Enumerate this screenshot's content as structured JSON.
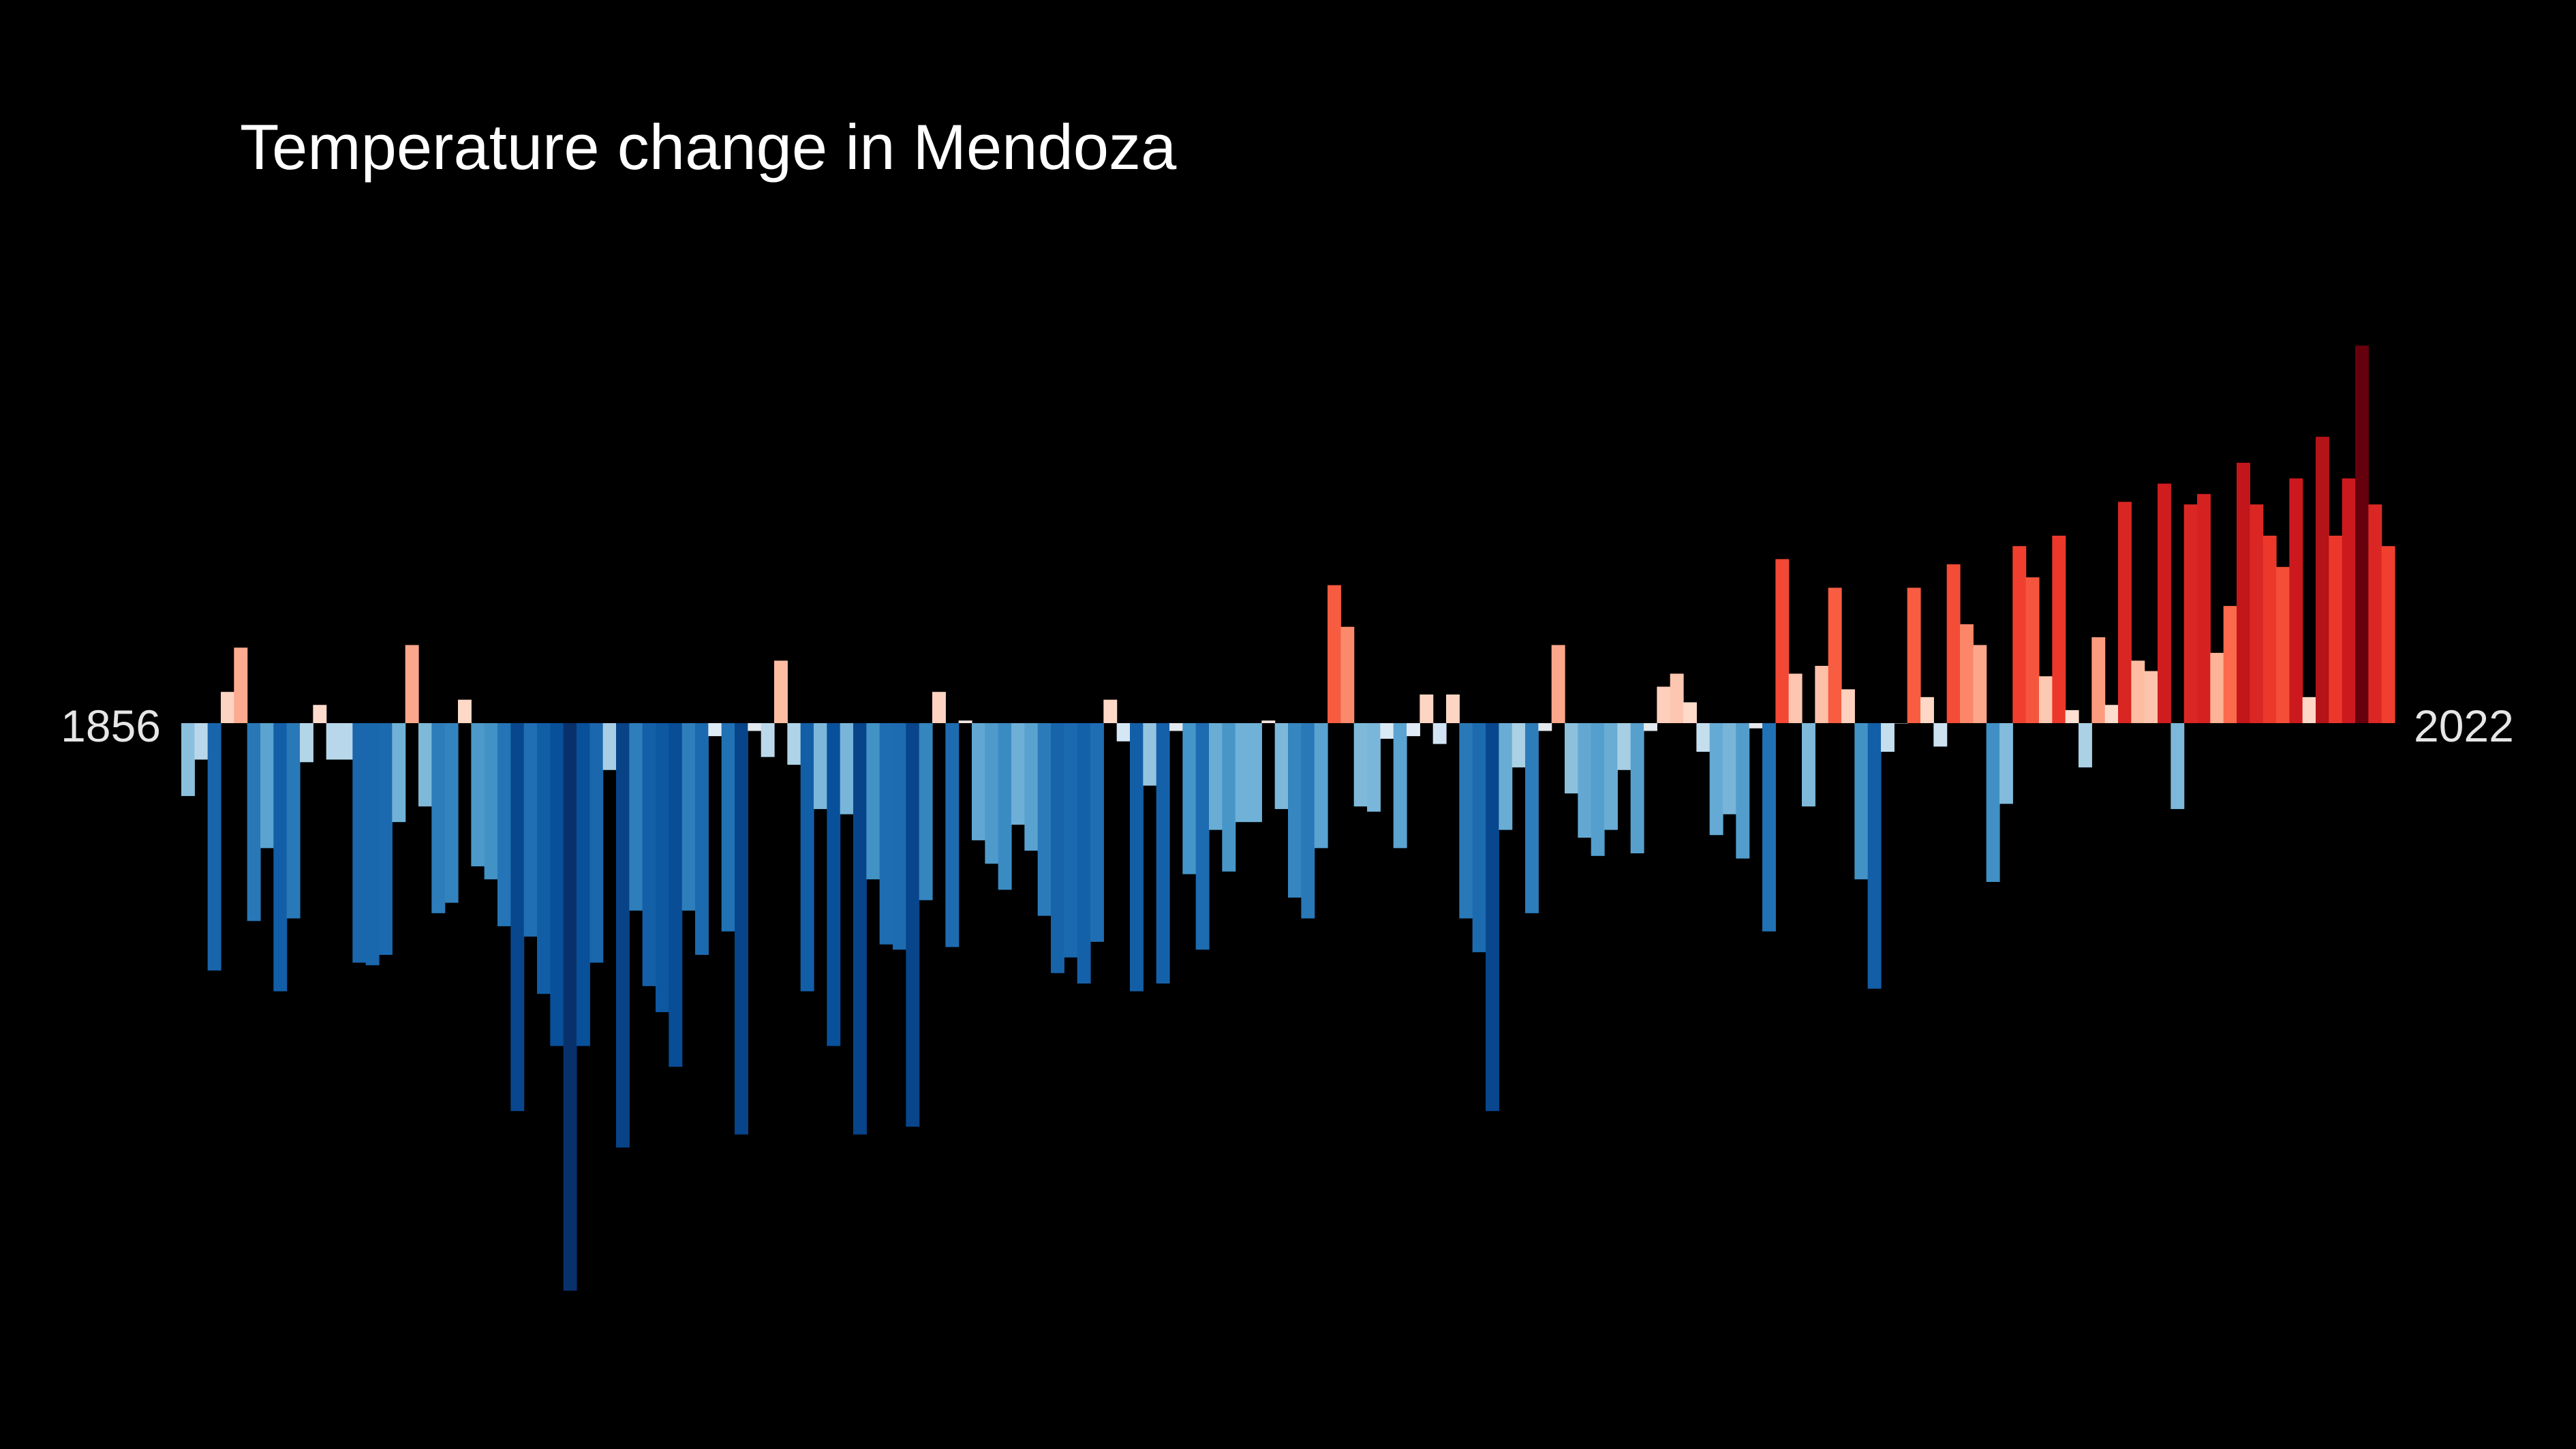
{
  "chart_data": {
    "type": "bar",
    "title": "Temperature change in Mendoza",
    "start_label": "1856",
    "end_label": "2022",
    "x_start": 1856,
    "x_end": 2022,
    "xlabel": "",
    "ylabel": "",
    "ylim": [
      -2.2,
      1.45
    ],
    "grid": false,
    "legend": "none",
    "units": "relative temperature anomaly",
    "values": [
      -0.28,
      -0.14,
      -0.95,
      0.12,
      0.29,
      -0.76,
      -0.48,
      -1.03,
      -0.75,
      -0.15,
      0.07,
      -0.14,
      -0.14,
      -0.92,
      -0.93,
      -0.89,
      -0.38,
      0.3,
      -0.32,
      -0.73,
      -0.69,
      0.09,
      -0.55,
      -0.6,
      -0.78,
      -1.49,
      -0.82,
      -1.04,
      -1.24,
      -2.18,
      -1.24,
      -0.92,
      -0.18,
      -1.63,
      -0.72,
      -1.01,
      -1.11,
      -1.32,
      -0.72,
      -0.89,
      -0.05,
      -0.8,
      -1.58,
      -0.03,
      -0.13,
      0.24,
      -0.16,
      -1.03,
      -0.33,
      -1.24,
      -0.35,
      -1.58,
      -0.6,
      -0.85,
      -0.87,
      -1.55,
      -0.68,
      0.12,
      -0.86,
      0.01,
      -0.45,
      -0.54,
      -0.64,
      -0.39,
      -0.49,
      -0.74,
      -0.96,
      -0.9,
      -1.0,
      -0.84,
      0.09,
      -0.07,
      -1.03,
      -0.24,
      -1.0,
      -0.03,
      -0.58,
      -0.87,
      -0.41,
      -0.57,
      -0.38,
      -0.38,
      0.01,
      -0.33,
      -0.67,
      -0.75,
      -0.48,
      0.53,
      0.37,
      -0.32,
      -0.34,
      -0.06,
      -0.48,
      -0.05,
      0.11,
      -0.08,
      0.11,
      -0.75,
      -0.88,
      -1.49,
      -0.41,
      -0.17,
      -0.73,
      -0.03,
      0.3,
      -0.27,
      -0.44,
      -0.51,
      -0.41,
      -0.18,
      -0.5,
      -0.03,
      0.14,
      0.19,
      0.08,
      -0.11,
      -0.43,
      -0.35,
      -0.52,
      -0.02,
      -0.8,
      0.63,
      0.19,
      -0.32,
      0.22,
      0.52,
      0.13,
      -0.6,
      -1.02,
      -0.11,
      0.0,
      0.52,
      0.1,
      -0.09,
      0.61,
      0.38,
      0.3,
      -0.61,
      -0.31,
      0.68,
      0.56,
      0.18,
      0.72,
      0.05,
      -0.17,
      0.33,
      0.07,
      0.85,
      0.24,
      0.2,
      0.92,
      -0.33,
      0.84,
      0.88,
      0.27,
      0.45,
      1.0,
      0.84,
      0.72,
      0.6,
      0.94,
      0.1,
      1.1,
      0.72,
      0.94,
      1.45,
      0.84,
      0.68
    ]
  }
}
